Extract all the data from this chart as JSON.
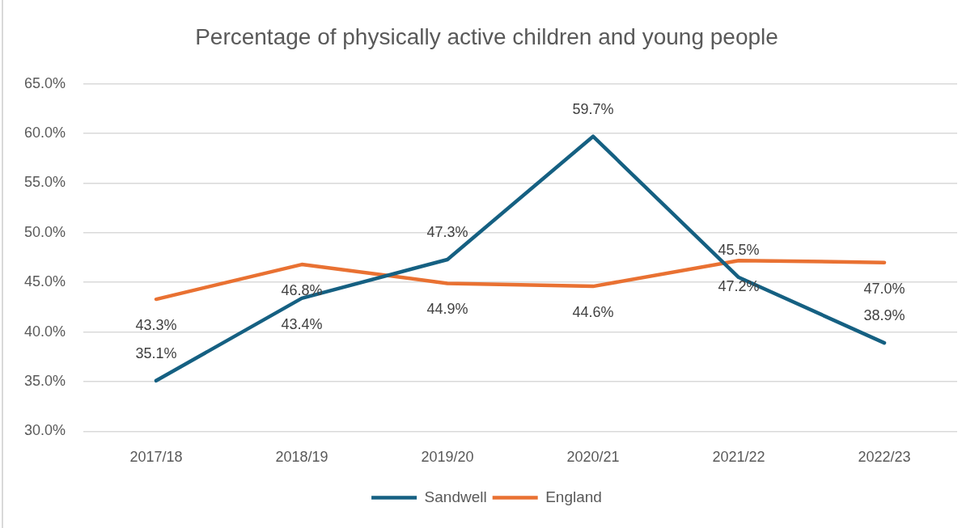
{
  "chart_data": {
    "type": "line",
    "title": "Percentage of physically active children and young people",
    "categories": [
      "2017/18",
      "2018/19",
      "2019/20",
      "2020/21",
      "2021/22",
      "2022/23"
    ],
    "series": [
      {
        "name": "Sandwell",
        "color": "#156082",
        "values": [
          35.1,
          43.4,
          47.3,
          59.7,
          45.5,
          38.9
        ],
        "value_labels": [
          "35.1%",
          "43.4%",
          "47.3%",
          "59.7%",
          "45.5%",
          "38.9%"
        ]
      },
      {
        "name": "England",
        "color": "#e97132",
        "values": [
          43.3,
          46.8,
          44.9,
          44.6,
          47.2,
          47.0
        ],
        "value_labels": [
          "43.3%",
          "46.8%",
          "44.9%",
          "44.6%",
          "47.2%",
          "47.0%"
        ]
      }
    ],
    "ylim": [
      30,
      65
    ],
    "yticks": [
      {
        "value": 30,
        "label": "30.0%"
      },
      {
        "value": 35,
        "label": "35.0%"
      },
      {
        "value": 40,
        "label": "40.0%"
      },
      {
        "value": 45,
        "label": "45.0%"
      },
      {
        "value": 50,
        "label": "50.0%"
      },
      {
        "value": 55,
        "label": "55.0%"
      },
      {
        "value": 60,
        "label": "60.0%"
      },
      {
        "value": 65,
        "label": "65.0%"
      }
    ],
    "grid": "y",
    "legend": "bottom",
    "marker": "none"
  }
}
